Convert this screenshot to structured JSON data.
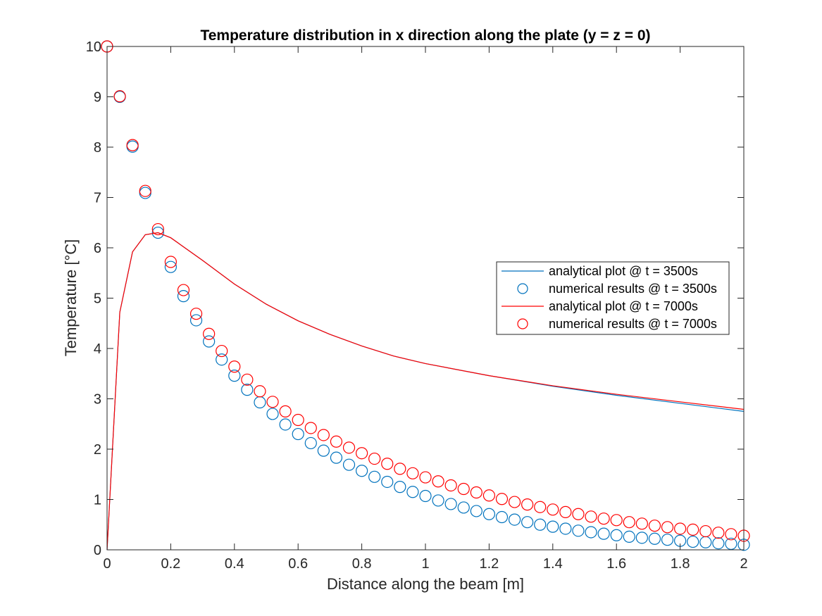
{
  "chart_data": {
    "type": "line",
    "title": "Temperature distribution in x direction along the plate (y = z = 0)",
    "xlabel": "Distance along the beam [m]",
    "ylabel": "Temperature [°C]",
    "xlim": [
      0,
      2
    ],
    "ylim": [
      0,
      10
    ],
    "xticks": [
      "0",
      "0.2",
      "0.4",
      "0.6",
      "0.8",
      "1",
      "1.2",
      "1.4",
      "1.6",
      "1.8",
      "2"
    ],
    "yticks": [
      "0",
      "1",
      "2",
      "3",
      "4",
      "5",
      "6",
      "7",
      "8",
      "9",
      "10"
    ],
    "grid": false,
    "legend_position": "right",
    "colors": {
      "blue": "#0072bd",
      "red": "#ff0000",
      "axis": "#262626"
    },
    "series": [
      {
        "name": "analytical plot @ t = 3500s",
        "style": "line",
        "color": "#0072bd",
        "x": [
          0,
          0.04,
          0.08,
          0.12,
          0.16,
          0.2,
          0.3,
          0.4,
          0.5,
          0.6,
          0.7,
          0.8,
          0.9,
          1.0,
          1.2,
          1.4,
          1.6,
          1.8,
          2.0
        ],
        "y": [
          0,
          4.72,
          5.92,
          6.26,
          6.3,
          6.2,
          5.75,
          5.28,
          4.88,
          4.55,
          4.28,
          4.05,
          3.85,
          3.7,
          3.46,
          3.25,
          3.07,
          2.91,
          2.75
        ]
      },
      {
        "name": "numerical results @ t = 3500s",
        "style": "markers",
        "color": "#0072bd",
        "x": [
          0,
          0.04,
          0.08,
          0.12,
          0.16,
          0.2,
          0.24,
          0.28,
          0.32,
          0.36,
          0.4,
          0.44,
          0.48,
          0.52,
          0.56,
          0.6,
          0.64,
          0.68,
          0.72,
          0.76,
          0.8,
          0.84,
          0.88,
          0.92,
          0.96,
          1.0,
          1.04,
          1.08,
          1.12,
          1.16,
          1.2,
          1.24,
          1.28,
          1.32,
          1.36,
          1.4,
          1.44,
          1.48,
          1.52,
          1.56,
          1.6,
          1.64,
          1.68,
          1.72,
          1.76,
          1.8,
          1.84,
          1.88,
          1.92,
          1.96,
          2.0
        ],
        "y": [
          10,
          9.0,
          8.01,
          7.09,
          6.3,
          5.62,
          5.04,
          4.56,
          4.14,
          3.78,
          3.46,
          3.18,
          2.93,
          2.7,
          2.49,
          2.3,
          2.12,
          1.97,
          1.83,
          1.69,
          1.57,
          1.45,
          1.35,
          1.25,
          1.15,
          1.07,
          0.98,
          0.91,
          0.84,
          0.77,
          0.71,
          0.65,
          0.6,
          0.55,
          0.5,
          0.46,
          0.42,
          0.38,
          0.35,
          0.32,
          0.29,
          0.26,
          0.24,
          0.22,
          0.2,
          0.18,
          0.16,
          0.15,
          0.13,
          0.12,
          0.1
        ]
      },
      {
        "name": "analytical plot @ t = 7000s",
        "style": "line",
        "color": "#ff0000",
        "x": [
          0,
          0.04,
          0.08,
          0.12,
          0.16,
          0.2,
          0.3,
          0.4,
          0.5,
          0.6,
          0.7,
          0.8,
          0.9,
          1.0,
          1.2,
          1.4,
          1.6,
          1.8,
          2.0
        ],
        "y": [
          0,
          4.72,
          5.92,
          6.26,
          6.3,
          6.2,
          5.75,
          5.28,
          4.88,
          4.55,
          4.28,
          4.05,
          3.85,
          3.7,
          3.46,
          3.26,
          3.09,
          2.94,
          2.79
        ]
      },
      {
        "name": "numerical results @ t = 7000s",
        "style": "markers",
        "color": "#ff0000",
        "x": [
          0,
          0.04,
          0.08,
          0.12,
          0.16,
          0.2,
          0.24,
          0.28,
          0.32,
          0.36,
          0.4,
          0.44,
          0.48,
          0.52,
          0.56,
          0.6,
          0.64,
          0.68,
          0.72,
          0.76,
          0.8,
          0.84,
          0.88,
          0.92,
          0.96,
          1.0,
          1.04,
          1.08,
          1.12,
          1.16,
          1.2,
          1.24,
          1.28,
          1.32,
          1.36,
          1.4,
          1.44,
          1.48,
          1.52,
          1.56,
          1.6,
          1.64,
          1.68,
          1.72,
          1.76,
          1.8,
          1.84,
          1.88,
          1.92,
          1.96,
          2.0
        ],
        "y": [
          10,
          9.01,
          8.04,
          7.13,
          6.37,
          5.72,
          5.16,
          4.69,
          4.29,
          3.95,
          3.64,
          3.38,
          3.15,
          2.94,
          2.75,
          2.58,
          2.42,
          2.28,
          2.15,
          2.03,
          1.92,
          1.81,
          1.71,
          1.61,
          1.52,
          1.44,
          1.36,
          1.28,
          1.21,
          1.14,
          1.08,
          1.01,
          0.95,
          0.9,
          0.85,
          0.8,
          0.75,
          0.71,
          0.66,
          0.62,
          0.59,
          0.55,
          0.52,
          0.48,
          0.45,
          0.42,
          0.4,
          0.37,
          0.34,
          0.31,
          0.28
        ]
      }
    ]
  }
}
